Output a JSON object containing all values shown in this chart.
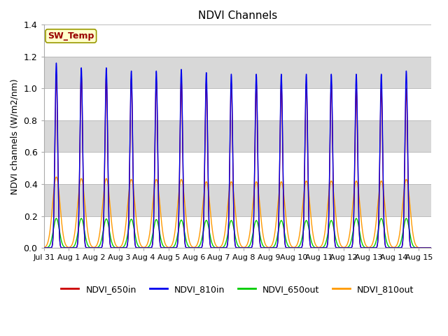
{
  "title": "NDVI Channels",
  "ylabel": "NDVI channels (W/m2/nm)",
  "ylim": [
    0,
    1.4
  ],
  "yticks": [
    0.0,
    0.2,
    0.4,
    0.6,
    0.8,
    1.0,
    1.2,
    1.4
  ],
  "xtick_labels": [
    "Jul 31",
    "Aug 1",
    "Aug 2",
    "Aug 3",
    "Aug 4",
    "Aug 5",
    "Aug 6",
    "Aug 7",
    "Aug 8",
    "Aug 9",
    "Aug 10",
    "Aug 11",
    "Aug 12",
    "Aug 13",
    "Aug 14",
    "Aug 15"
  ],
  "xtick_positions": [
    0,
    1,
    2,
    3,
    4,
    5,
    6,
    7,
    8,
    9,
    10,
    11,
    12,
    13,
    14,
    15
  ],
  "legend_labels": [
    "NDVI_650in",
    "NDVI_810in",
    "NDVI_650out",
    "NDVI_810out"
  ],
  "legend_colors": [
    "#cc0000",
    "#0000ee",
    "#00cc00",
    "#ff9900"
  ],
  "sw_temp_label": "SW_Temp",
  "sw_temp_color": "#990000",
  "sw_temp_bg": "#ffffcc",
  "sw_temp_edge": "#999900",
  "bg_color": "#d8d8d8",
  "white_bands": [
    [
      0.0,
      0.2
    ],
    [
      0.4,
      0.6
    ],
    [
      0.8,
      1.0
    ],
    [
      1.2,
      1.4
    ]
  ],
  "peak_650in": [
    1.09,
    1.08,
    1.07,
    1.06,
    1.05,
    1.05,
    1.04,
    1.03,
    1.03,
    1.03,
    1.03,
    1.03,
    1.0,
    1.0,
    1.0
  ],
  "peak_810in": [
    1.16,
    1.13,
    1.13,
    1.11,
    1.11,
    1.12,
    1.1,
    1.09,
    1.09,
    1.09,
    1.09,
    1.09,
    1.09,
    1.09,
    1.11
  ],
  "peak_650out": [
    0.185,
    0.185,
    0.182,
    0.18,
    0.178,
    0.175,
    0.173,
    0.172,
    0.172,
    0.172,
    0.172,
    0.172,
    0.185,
    0.185,
    0.185
  ],
  "peak_810out": [
    0.445,
    0.435,
    0.435,
    0.43,
    0.43,
    0.43,
    0.415,
    0.415,
    0.415,
    0.415,
    0.42,
    0.42,
    0.42,
    0.42,
    0.43
  ],
  "sigma_810in": 0.055,
  "sigma_650in": 0.055,
  "sigma_650out": 0.12,
  "sigma_810out": 0.15,
  "xlim": [
    0,
    15.5
  ],
  "figsize": [
    6.4,
    4.8
  ],
  "dpi": 100
}
